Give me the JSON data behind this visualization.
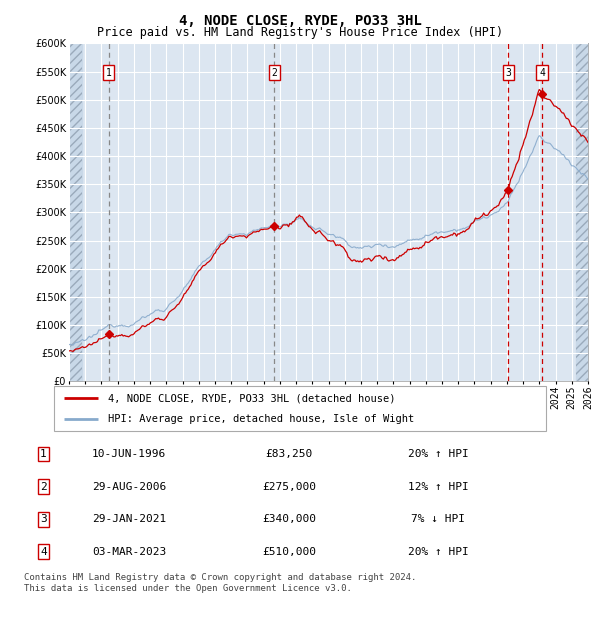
{
  "title": "4, NODE CLOSE, RYDE, PO33 3HL",
  "subtitle": "Price paid vs. HM Land Registry's House Price Index (HPI)",
  "ylim": [
    0,
    600000
  ],
  "yticks": [
    0,
    50000,
    100000,
    150000,
    200000,
    250000,
    300000,
    350000,
    400000,
    450000,
    500000,
    550000,
    600000
  ],
  "xlim_start": 1994.0,
  "xlim_end": 2026.0,
  "plot_bg_color": "#dce6f1",
  "hatch_bg_color": "#c8d8e8",
  "grid_color": "#ffffff",
  "sale_color": "#cc0000",
  "hpi_color": "#88aacc",
  "vline_color_12": "#888888",
  "vline_color_34": "#cc0000",
  "sales": [
    {
      "num": 1,
      "date_num": 1996.44,
      "price": 83250
    },
    {
      "num": 2,
      "date_num": 2006.66,
      "price": 275000
    },
    {
      "num": 3,
      "date_num": 2021.08,
      "price": 340000
    },
    {
      "num": 4,
      "date_num": 2023.17,
      "price": 510000
    }
  ],
  "table_rows": [
    {
      "num": 1,
      "date": "10-JUN-1996",
      "price": "£83,250",
      "hpi": "20% ↑ HPI"
    },
    {
      "num": 2,
      "date": "29-AUG-2006",
      "price": "£275,000",
      "hpi": "12% ↑ HPI"
    },
    {
      "num": 3,
      "date": "29-JAN-2021",
      "price": "£340,000",
      "hpi": "7% ↓ HPI"
    },
    {
      "num": 4,
      "date": "03-MAR-2023",
      "price": "£510,000",
      "hpi": "20% ↑ HPI"
    }
  ],
  "legend_entries": [
    {
      "label": "4, NODE CLOSE, RYDE, PO33 3HL (detached house)",
      "color": "#cc0000"
    },
    {
      "label": "HPI: Average price, detached house, Isle of Wight",
      "color": "#88aacc"
    }
  ],
  "footnote": "Contains HM Land Registry data © Crown copyright and database right 2024.\nThis data is licensed under the Open Government Licence v3.0.",
  "title_fontsize": 10,
  "subtitle_fontsize": 8.5,
  "tick_fontsize": 7,
  "legend_fontsize": 7.5,
  "table_fontsize": 8
}
